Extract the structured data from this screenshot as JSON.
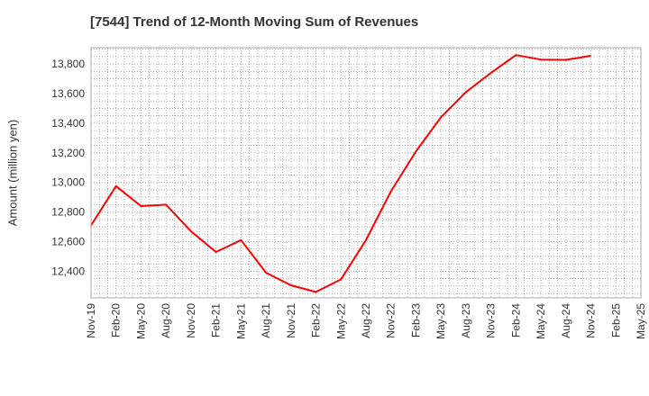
{
  "chart_data": {
    "type": "line",
    "title": "[7544]  Trend of 12-Month Moving Sum of Revenues",
    "xlabel": "",
    "ylabel": "Amount (million yen)",
    "x_ticks": [
      "Nov-19",
      "Feb-20",
      "May-20",
      "Aug-20",
      "Nov-20",
      "Feb-21",
      "May-21",
      "Aug-21",
      "Nov-21",
      "Feb-22",
      "May-22",
      "Aug-22",
      "Nov-22",
      "Feb-23",
      "May-23",
      "Aug-23",
      "Nov-23",
      "Feb-24",
      "May-24",
      "Aug-24",
      "Nov-24",
      "Feb-25",
      "May-25"
    ],
    "y_ticks": [
      "12,400",
      "12,600",
      "12,800",
      "13,000",
      "13,200",
      "13,400",
      "13,600",
      "13,800"
    ],
    "y_tick_values": [
      12400,
      12600,
      12800,
      13000,
      13200,
      13400,
      13600,
      13800
    ],
    "ylim": [
      12220,
      13910
    ],
    "grid": true,
    "series": [
      {
        "color": "#ff0000",
        "values": [
          12710,
          12975,
          12840,
          12850,
          12670,
          12530,
          12610,
          12390,
          12305,
          12260,
          12345,
          12610,
          12940,
          13210,
          13440,
          13610,
          13740,
          13860,
          13830,
          13828,
          13855
        ]
      }
    ]
  }
}
